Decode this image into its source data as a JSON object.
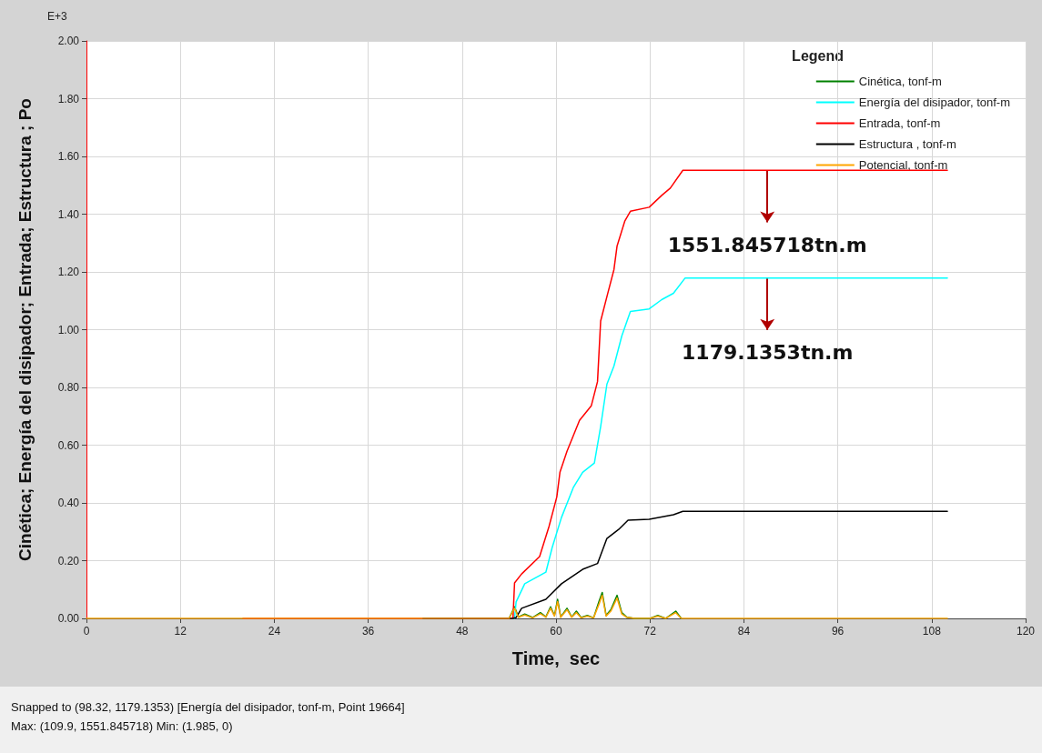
{
  "chart_data": {
    "type": "line",
    "xlabel": "Time,  sec",
    "ylabel": "Cinética; Energía del disipador; Entrada; Estructura ; Po",
    "legend_title": "Legend",
    "legend": "top right",
    "grid": true,
    "marker": "none",
    "line_style": "solid",
    "xlim": [
      0,
      120
    ],
    "xticks": [
      0,
      12,
      24,
      36,
      48,
      60,
      72,
      84,
      96,
      108,
      120
    ],
    "ylim": [
      0,
      2
    ],
    "yticks": [
      {
        "value": 0,
        "label": "0.00"
      },
      {
        "value": 0.2,
        "label": "0.20"
      },
      {
        "value": 0.4,
        "label": "0.40"
      },
      {
        "value": 0.6,
        "label": "0.60"
      },
      {
        "value": 0.8,
        "label": "0.80"
      },
      {
        "value": 1,
        "label": "1.00"
      },
      {
        "value": 1.2,
        "label": "1.20"
      },
      {
        "value": 1.4,
        "label": "1.40"
      },
      {
        "value": 1.6,
        "label": "1.60"
      },
      {
        "value": 1.8,
        "label": "1.80"
      },
      {
        "value": 2,
        "label": "2.00"
      }
    ],
    "series": [
      {
        "name": "Cinética, tonf-m",
        "color": "#008000",
        "x": [
          54,
          54.7,
          55.2,
          56,
          57,
          58,
          58.7,
          59.3,
          59.8,
          60.2,
          60.6,
          61.4,
          62,
          62.6,
          63.2,
          64,
          64.8,
          65.5,
          65.9,
          66.4,
          67,
          67.8,
          68.4,
          69,
          70,
          72,
          73,
          74,
          75.3,
          76
        ],
        "values": [
          0,
          0.04,
          0.005,
          0.015,
          0.003,
          0.02,
          0.005,
          0.04,
          0.01,
          0.066,
          0.005,
          0.035,
          0.005,
          0.025,
          0.003,
          0.01,
          0.002,
          0.06,
          0.09,
          0.01,
          0.03,
          0.08,
          0.02,
          0.005,
          0,
          0,
          0.01,
          0,
          0.025,
          0
        ]
      },
      {
        "name": "Energía del disipador, tonf-m",
        "color": "#00ffff",
        "x": [
          54,
          54.7,
          54.9,
          56,
          58.7,
          59.5,
          60.7,
          62.2,
          63.4,
          64.9,
          65.7,
          66.5,
          67.4,
          68.4,
          69.5,
          71.9,
          73.5,
          75,
          76.5,
          110
        ],
        "values": [
          0,
          0,
          0.057,
          0.12,
          0.16,
          0.245,
          0.35,
          0.453,
          0.506,
          0.538,
          0.664,
          0.811,
          0.874,
          0.978,
          1.063,
          1.072,
          1.104,
          1.126,
          1.179,
          1.179
        ]
      },
      {
        "name": "Entrada, tonf-m",
        "color": "#ff0000",
        "x": [
          20,
          54.5,
          54.7,
          55.6,
          57.9,
          59.1,
          60.1,
          60.5,
          61.4,
          63,
          64.5,
          65.3,
          65.7,
          66.6,
          67.4,
          67.8,
          68.8,
          69.5,
          71.9,
          73.5,
          74.6,
          76.2,
          110
        ],
        "values": [
          0,
          0,
          0.123,
          0.154,
          0.214,
          0.318,
          0.421,
          0.506,
          0.579,
          0.686,
          0.736,
          0.82,
          1.03,
          1.125,
          1.208,
          1.29,
          1.377,
          1.41,
          1.424,
          1.465,
          1.49,
          1.552,
          1.552
        ]
      },
      {
        "name": "Estructura , tonf-m",
        "color": "#000000",
        "x": [
          43,
          54.5,
          54.9,
          55.6,
          58.7,
          60.7,
          63.4,
          65.3,
          66.5,
          68,
          69.2,
          71.9,
          75,
          76.2,
          110
        ],
        "values": [
          0,
          0,
          0.003,
          0.035,
          0.066,
          0.12,
          0.17,
          0.19,
          0.277,
          0.308,
          0.34,
          0.343,
          0.359,
          0.371,
          0.371
        ]
      },
      {
        "name": "Potencial, tonf-m",
        "color": "#ffa500",
        "x": [
          0,
          54,
          54.7,
          55.2,
          56,
          57,
          58,
          58.7,
          59.3,
          59.8,
          60.2,
          60.6,
          61.4,
          62,
          62.6,
          63.2,
          64,
          64.8,
          65.5,
          65.9,
          66.4,
          67,
          67.8,
          68.4,
          69,
          70,
          72,
          73,
          74,
          75.3,
          76,
          110
        ],
        "values": [
          0,
          0,
          0.035,
          0.004,
          0.012,
          0.002,
          0.016,
          0.004,
          0.035,
          0.008,
          0.058,
          0.004,
          0.03,
          0.004,
          0.02,
          0.002,
          0.008,
          0.002,
          0.05,
          0.08,
          0.008,
          0.025,
          0.07,
          0.015,
          0.004,
          0,
          0,
          0.008,
          0,
          0.02,
          0,
          0
        ]
      }
    ],
    "annotations": [
      "E+3",
      {
        "text": "1551.845718tn.m",
        "x": 87,
        "y": 1.552
      },
      {
        "text": "1179.1353tn.m",
        "x": 87,
        "y": 1.179
      },
      "Snapped to (98.32, 1179.1353)  [Energía del disipador, tonf-m, Point 19664]",
      "Max: (109.9, 1551.845718)   Min: (1.985, 0)"
    ]
  }
}
